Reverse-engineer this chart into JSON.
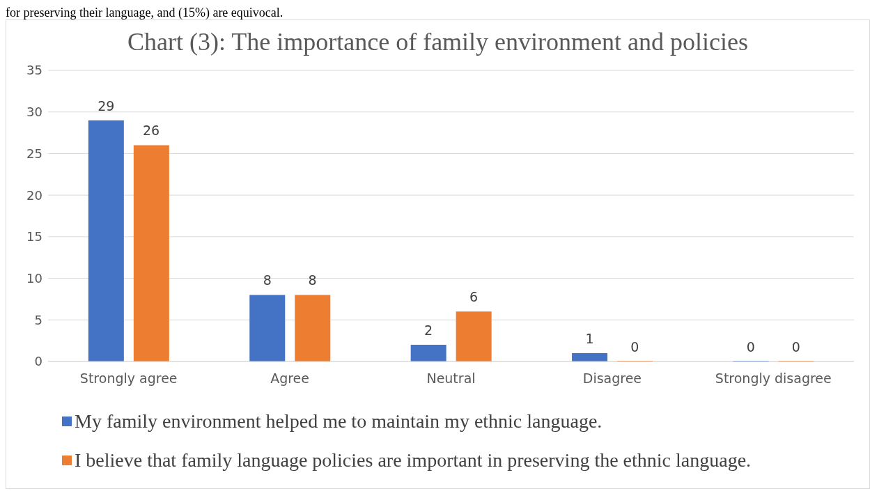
{
  "chart_data": {
    "type": "bar",
    "title": "Chart (3): The importance of family environment and policies",
    "annotations": [
      "for preserving their language, and (15%) are equivocal."
    ],
    "categories": [
      "Strongly agree",
      "Agree",
      "Neutral",
      "Disagree",
      "Strongly disagree"
    ],
    "series": [
      {
        "name": "My family environment helped me to maintain my ethnic language.",
        "color": "#4472c4",
        "values": [
          29,
          8,
          2,
          1,
          0
        ]
      },
      {
        "name": "I believe that family language policies are important in preserving the ethnic language.",
        "color": "#ed7d31",
        "values": [
          26,
          8,
          6,
          0,
          0
        ]
      }
    ],
    "ylim": [
      0,
      35
    ],
    "yticks": [
      0,
      5,
      10,
      15,
      20,
      25,
      30,
      35
    ],
    "grid": "y",
    "legend": "bottom",
    "data_labels": true
  }
}
